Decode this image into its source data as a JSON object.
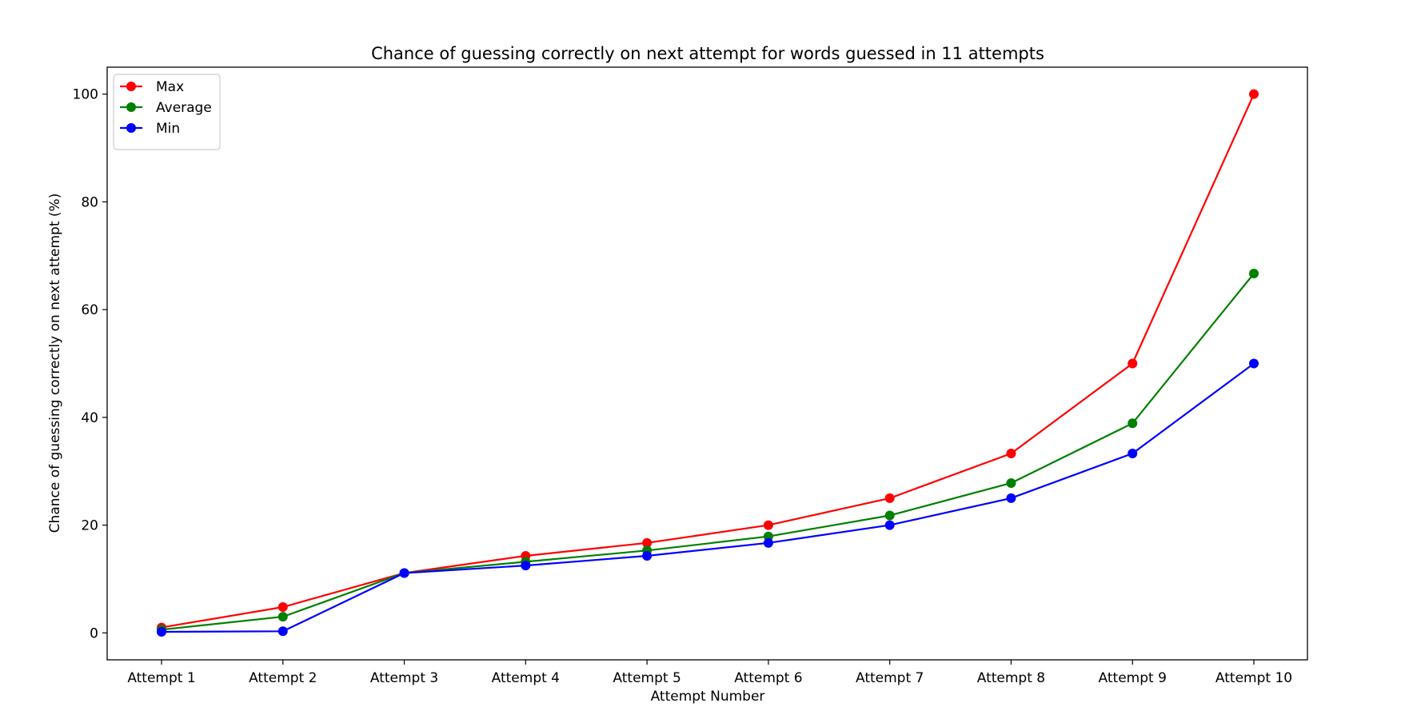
{
  "chart_data": {
    "type": "line",
    "title": "Chance of guessing correctly on next attempt for words guessed in 11 attempts",
    "xlabel": "Attempt Number",
    "ylabel": "Chance of guessing correctly on next attempt (%)",
    "categories": [
      "Attempt 1",
      "Attempt 2",
      "Attempt 3",
      "Attempt 4",
      "Attempt 5",
      "Attempt 6",
      "Attempt 7",
      "Attempt 8",
      "Attempt 9",
      "Attempt 10"
    ],
    "ylim": [
      -5,
      105
    ],
    "yticks": [
      0,
      20,
      40,
      60,
      80,
      100
    ],
    "grid": false,
    "legend_position": "top-left",
    "series": [
      {
        "name": "Max",
        "color": "#ff0000",
        "marker": "circle",
        "values": [
          1.0,
          4.8,
          11.1,
          14.3,
          16.7,
          20.0,
          25.0,
          33.3,
          50.0,
          100.0
        ]
      },
      {
        "name": "Average",
        "color": "#008000",
        "marker": "circle",
        "values": [
          0.6,
          3.0,
          11.1,
          13.2,
          15.3,
          17.9,
          21.8,
          27.8,
          38.9,
          66.7
        ]
      },
      {
        "name": "Min",
        "color": "#0000ff",
        "marker": "circle",
        "values": [
          0.2,
          0.3,
          11.1,
          12.5,
          14.3,
          16.7,
          20.0,
          25.0,
          33.3,
          50.0
        ]
      }
    ]
  }
}
